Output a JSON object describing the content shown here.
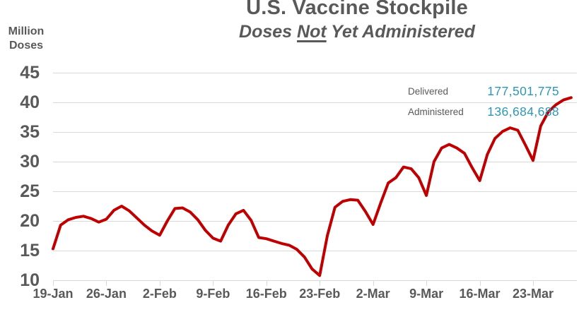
{
  "title": "U.S. Vaccine Stockpile",
  "subtitle": {
    "pre": "Doses ",
    "underlined": "Not",
    "post": " Yet Administered"
  },
  "y_axis_unit": {
    "line1": "Million",
    "line2": "Doses"
  },
  "annotation": {
    "rows": [
      {
        "label": "Delivered",
        "value": "177,501,775"
      },
      {
        "label": "Administered",
        "value": "136,684,688"
      }
    ]
  },
  "colors": {
    "line": "#C00000",
    "grid": "#D9D9D9",
    "text": "#595959",
    "annotation_value": "#2E96B5"
  },
  "chart_data": {
    "type": "line",
    "title": "U.S. Vaccine Stockpile",
    "subtitle": "Doses Not Yet Administered",
    "series_name": "Doses Not Yet Administered",
    "ylabel": "Million Doses",
    "ylim": [
      10,
      45
    ],
    "y_ticks": [
      45,
      40,
      35,
      30,
      25,
      20,
      15,
      10
    ],
    "grid": "horizontal",
    "legend_position": "none",
    "x_tick_labels": [
      "19-Jan",
      "26-Jan",
      "2-Feb",
      "9-Feb",
      "16-Feb",
      "23-Feb",
      "2-Mar",
      "9-Mar",
      "16-Mar",
      "23-Mar"
    ],
    "x": [
      "19-Jan",
      "20-Jan",
      "21-Jan",
      "22-Jan",
      "23-Jan",
      "24-Jan",
      "25-Jan",
      "26-Jan",
      "27-Jan",
      "28-Jan",
      "29-Jan",
      "30-Jan",
      "31-Jan",
      "1-Feb",
      "2-Feb",
      "3-Feb",
      "4-Feb",
      "5-Feb",
      "6-Feb",
      "7-Feb",
      "8-Feb",
      "9-Feb",
      "10-Feb",
      "11-Feb",
      "12-Feb",
      "13-Feb",
      "14-Feb",
      "15-Feb",
      "16-Feb",
      "17-Feb",
      "18-Feb",
      "19-Feb",
      "20-Feb",
      "21-Feb",
      "22-Feb",
      "23-Feb",
      "24-Feb",
      "25-Feb",
      "26-Feb",
      "27-Feb",
      "28-Feb",
      "1-Mar",
      "2-Mar",
      "3-Mar",
      "4-Mar",
      "5-Mar",
      "6-Mar",
      "7-Mar",
      "8-Mar",
      "9-Mar",
      "10-Mar",
      "11-Mar",
      "12-Mar",
      "13-Mar",
      "14-Mar",
      "15-Mar",
      "16-Mar",
      "17-Mar",
      "18-Mar",
      "19-Mar",
      "20-Mar",
      "21-Mar",
      "22-Mar",
      "23-Mar",
      "24-Mar",
      "25-Mar",
      "26-Mar",
      "27-Mar",
      "28-Mar"
    ],
    "values": [
      15.3,
      19.3,
      20.2,
      20.6,
      20.8,
      20.4,
      19.8,
      20.3,
      21.8,
      22.5,
      21.7,
      20.5,
      19.3,
      18.3,
      17.6,
      20.0,
      22.1,
      22.2,
      21.5,
      20.2,
      18.4,
      17.1,
      16.6,
      19.3,
      21.2,
      21.8,
      20.1,
      17.2,
      17.0,
      16.6,
      16.2,
      15.9,
      15.2,
      13.9,
      11.9,
      10.8,
      17.5,
      22.3,
      23.3,
      23.6,
      23.5,
      21.6,
      19.4,
      23.0,
      26.4,
      27.3,
      29.1,
      28.8,
      27.3,
      24.3,
      30.0,
      32.3,
      32.9,
      32.3,
      31.4,
      29.0,
      26.8,
      31.2,
      33.9,
      35.1,
      35.7,
      35.3,
      32.8,
      30.2,
      36.0,
      38.4,
      39.6,
      40.4,
      40.8
    ]
  }
}
